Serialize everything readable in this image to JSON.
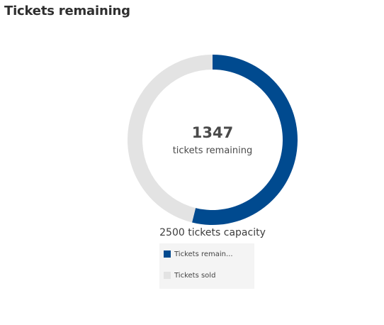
{
  "title": "Tickets remaining",
  "center": {
    "value": "1347",
    "caption": "tickets remaining"
  },
  "capacity_text": "2500 tickets capacity",
  "legend": {
    "items": [
      {
        "label": "Tickets remain...",
        "color": "#004a8f"
      },
      {
        "label": "Tickets sold",
        "color": "#e3e3e3"
      }
    ]
  },
  "chart_data": {
    "type": "pie",
    "variant": "donut",
    "title": "Tickets remaining",
    "total": 2500,
    "center_label": "1347 tickets remaining",
    "series": [
      {
        "name": "Tickets remaining",
        "value": 1347,
        "color": "#004a8f"
      },
      {
        "name": "Tickets sold",
        "value": 1153,
        "color": "#e3e3e3"
      }
    ],
    "start_angle": "12 o'clock",
    "direction": "clockwise",
    "legend_position": "bottom"
  }
}
